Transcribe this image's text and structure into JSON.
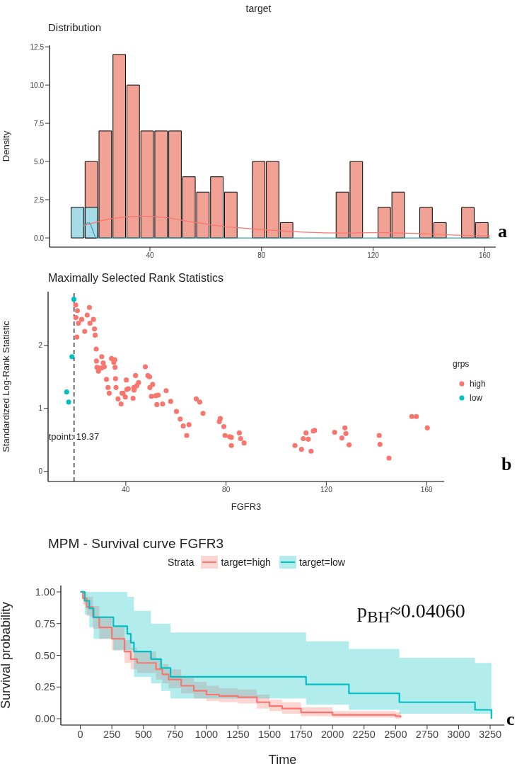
{
  "chart_data": [
    {
      "type": "histogram",
      "title": "target",
      "subtitle": "Distribution",
      "ylabel": "Density",
      "annotations": [
        "a"
      ],
      "bins": [
        11.5,
        16.5,
        21.5,
        26.5,
        31.5,
        36.5,
        41.5,
        46.5,
        51.5,
        56.5,
        61.5,
        66.5,
        71.5,
        76.5,
        81.5,
        86.5,
        91.5,
        96.5,
        101.5,
        106.5,
        111.5,
        116.5,
        121.5,
        126.5,
        131.5,
        136.5,
        141.5,
        146.5,
        151.5,
        156.5,
        161.5
      ],
      "series": [
        {
          "color": "#f1a295",
          "values": [
            0,
            5,
            7,
            12,
            10,
            7,
            7,
            7,
            4,
            3,
            4,
            3,
            0,
            5,
            5,
            1,
            0,
            0,
            0,
            3,
            5,
            0,
            2,
            3,
            0,
            2,
            1,
            0,
            2,
            1
          ]
        },
        {
          "color": "#a6dce8",
          "values": [
            2,
            2,
            0,
            0,
            0,
            0,
            0,
            0,
            0,
            0,
            0,
            0,
            0,
            0,
            0,
            0,
            0,
            0,
            0,
            0,
            0,
            0,
            0,
            0,
            0,
            0,
            0,
            0,
            0,
            0
          ]
        },
        {
          "type": "line",
          "color": "#f8766d",
          "x": [
            16,
            22,
            30,
            37,
            45,
            55,
            65,
            80,
            95,
            110,
            120,
            135,
            150,
            162
          ],
          "values": [
            0.78,
            1.1,
            1.35,
            1.42,
            1.35,
            1.05,
            0.78,
            0.55,
            0.38,
            0.32,
            0.34,
            0.3,
            0.18,
            0.12
          ]
        },
        {
          "type": "line",
          "color": "#3aa0b8",
          "x": [
            16,
            18.2,
            20.8,
            162
          ],
          "values": [
            0.78,
            0.99,
            0,
            0
          ]
        }
      ],
      "xlim": [
        4,
        164
      ],
      "xticks": [
        40,
        80,
        120,
        160
      ],
      "ylim": [
        -0.6,
        12.6
      ],
      "yticks": [
        {
          "value": 0,
          "label": "0.0"
        },
        {
          "value": 2.5,
          "label": "2.5"
        },
        {
          "value": 5,
          "label": "5.0"
        },
        {
          "value": 7.5,
          "label": "7.5"
        },
        {
          "value": 10,
          "label": "10.0"
        },
        {
          "value": 12.5,
          "label": "12.5"
        }
      ]
    },
    {
      "type": "scatter",
      "title": "Maximally Selected Rank Statistics",
      "xlabel": "FGFR3",
      "ylabel": "Standardized Log-Rank Statistic",
      "legend_title": "grps",
      "legend": "right",
      "marker": "circle",
      "annotations": [
        "b"
      ],
      "series": [
        {
          "name": "high",
          "color": "#f8766d",
          "x": [
            20.0,
            20.7,
            20.1,
            21.1,
            20.5,
            22.4,
            23.6,
            24.6,
            25.5,
            25.7,
            27.1,
            27.5,
            27.8,
            28.2,
            28.3,
            28.5,
            29.1,
            29.4,
            30.4,
            30.3,
            31.0,
            31.4,
            32.3,
            32.9,
            33.4,
            34.3,
            35.2,
            35.6,
            35.7,
            35.9,
            36.1,
            36.9,
            38.1,
            38.5,
            38.9,
            39.8,
            40.2,
            40.4,
            41.0,
            42.9,
            43.2,
            43.3,
            43.4,
            43.9,
            44.4,
            45.1,
            47.8,
            48.8,
            49.5,
            49.6,
            50.2,
            50.7,
            51.9,
            52.9,
            52.4,
            54.7,
            56.1,
            57.9,
            60.2,
            61.7,
            62.9,
            64.3,
            65.2,
            68.1,
            69.5,
            70.8,
            77.3,
            77.7,
            79.1,
            79.6,
            81.4,
            82.1,
            82.1,
            85.3,
            85.8,
            87.2,
            107.5,
            110.1,
            110.8,
            111.9,
            112.8,
            113.9,
            114.8,
            115.3,
            123.3,
            126.2,
            127.4,
            127.8,
            129.1,
            141.1,
            141.4,
            145.0,
            154.1,
            155.9,
            160.3
          ],
          "values": [
            2.64,
            2.55,
            2.44,
            2.35,
            2.13,
            2.41,
            2.22,
            2.48,
            2.6,
            2.35,
            2.41,
            2.26,
            2.16,
            1.94,
            1.75,
            1.65,
            1.59,
            1.64,
            1.82,
            1.64,
            1.72,
            1.66,
            1.46,
            1.33,
            1.24,
            1.79,
            1.73,
            1.77,
            1.65,
            1.47,
            1.33,
            1.15,
            1.07,
            1.24,
            1.24,
            1.18,
            1.45,
            1.3,
            1.31,
            1.16,
            1.33,
            1.29,
            1.31,
            1.52,
            1.36,
            1.41,
            1.66,
            1.52,
            1.5,
            1.33,
            1.19,
            1.38,
            1.2,
            1.21,
            1.06,
            1.07,
            1.28,
            1.11,
            0.95,
            0.83,
            0.72,
            0.57,
            0.74,
            1.15,
            1.1,
            0.92,
            0.79,
            0.84,
            0.71,
            0.57,
            0.55,
            0.54,
            0.41,
            0.61,
            0.52,
            0.45,
            0.41,
            0.35,
            0.52,
            0.61,
            0.51,
            0.32,
            0.64,
            0.65,
            0.62,
            0.53,
            0.69,
            0.6,
            0.42,
            0.57,
            0.43,
            0.21,
            0.87,
            0.87,
            0.69
          ]
        },
        {
          "name": "low",
          "color": "#00bfc4",
          "x": [
            19.3,
            18.5,
            16.4,
            17.2
          ],
          "values": [
            2.73,
            1.82,
            1.26,
            1.1
          ]
        }
      ],
      "ref_lines": [
        {
          "axis": "x",
          "value": 19.37,
          "label": "tpoint: 19.37",
          "color": "#000000",
          "line_style": "dashed"
        }
      ],
      "xlim": [
        9,
        167
      ],
      "xticks": [
        40,
        80,
        120,
        160
      ],
      "ylim": [
        -0.16,
        2.85
      ],
      "yticks": [
        0,
        1,
        2
      ]
    },
    {
      "type": "step",
      "title": "MPM - Survival curve FGFR3",
      "xlabel": "Time",
      "ylabel": "Survival probability",
      "legend_title": "Strata",
      "legend": "top",
      "annotations": [
        "p$_{BH}$≈0.04060",
        "c"
      ],
      "series": [
        {
          "name": "target=high",
          "color": "#f8766d",
          "x": [
            0,
            20,
            50,
            100,
            150,
            250,
            350,
            400,
            450,
            600,
            650,
            700,
            800,
            900,
            1000,
            1100,
            1250,
            1400,
            1500,
            1600,
            1750,
            2000,
            2250,
            2500,
            2540
          ],
          "values": [
            1,
            0.95,
            0.88,
            0.8,
            0.72,
            0.63,
            0.53,
            0.47,
            0.44,
            0.39,
            0.35,
            0.31,
            0.26,
            0.22,
            0.19,
            0.18,
            0.17,
            0.13,
            0.1,
            0.08,
            0.05,
            0.03,
            0.03,
            0.02,
            0.01
          ],
          "upper": [
            1,
            1,
            0.96,
            0.89,
            0.81,
            0.72,
            0.62,
            0.56,
            0.53,
            0.47,
            0.43,
            0.39,
            0.33,
            0.29,
            0.26,
            0.24,
            0.23,
            0.19,
            0.15,
            0.13,
            0.09,
            0.06,
            0.06,
            0.05,
            0.04
          ],
          "lower": [
            1,
            0.9,
            0.81,
            0.71,
            0.63,
            0.54,
            0.44,
            0.39,
            0.36,
            0.31,
            0.28,
            0.24,
            0.2,
            0.16,
            0.14,
            0.13,
            0.12,
            0.08,
            0.06,
            0.04,
            0.02,
            0.01,
            0.01,
            0,
            0
          ]
        },
        {
          "name": "target=low",
          "color": "#00bfc4",
          "x": [
            0,
            34,
            71,
            105,
            262,
            372,
            400,
            425,
            560,
            640,
            715,
            1790,
            2130,
            2530,
            3130,
            3260
          ],
          "values": [
            1,
            0.93,
            0.87,
            0.8,
            0.73,
            0.67,
            0.6,
            0.53,
            0.47,
            0.4,
            0.33,
            0.27,
            0.2,
            0.13,
            0.07,
            0
          ],
          "upper": [
            1,
            1,
            1,
            1,
            1,
            0.96,
            0.96,
            0.85,
            0.75,
            0.75,
            0.68,
            0.61,
            0.55,
            0.48,
            0.44,
            0.44
          ],
          "lower": [
            1,
            0.82,
            0.72,
            0.63,
            0.54,
            0.54,
            0.54,
            0.33,
            0.28,
            0.22,
            0.16,
            0.11,
            0.07,
            0.04,
            0.04,
            0.04
          ]
        }
      ],
      "xlim": [
        -155,
        3362
      ],
      "xticks": [
        0,
        250,
        500,
        750,
        1000,
        1250,
        1500,
        1750,
        2000,
        2250,
        2500,
        2750,
        3000,
        3250
      ],
      "ylim": [
        -0.05,
        1.05
      ],
      "yticks": [
        {
          "value": 0,
          "label": "0.00"
        },
        {
          "value": 0.25,
          "label": "0.25"
        },
        {
          "value": 0.5,
          "label": "0.50"
        },
        {
          "value": 0.75,
          "label": "0.75"
        },
        {
          "value": 1,
          "label": "1.00"
        }
      ]
    }
  ]
}
